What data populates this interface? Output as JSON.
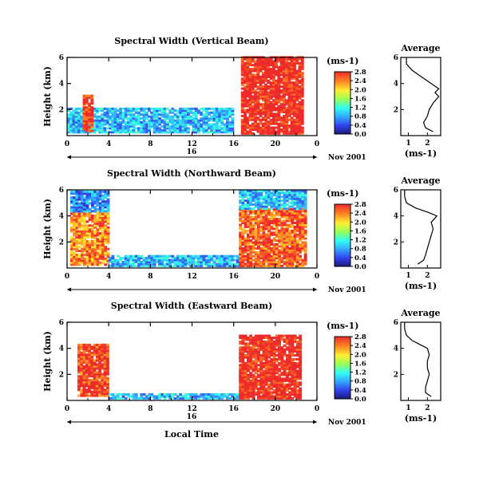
{
  "chart_data": [
    {
      "type": "heatmap",
      "title": "Spectral Width (Vertical Beam)",
      "ylabel": "Height (km)",
      "ylim": [
        0,
        6
      ],
      "yticks": [
        "2",
        "4",
        "6"
      ],
      "xlim": [
        0,
        24
      ],
      "xticks": [
        "0",
        "4",
        "8",
        "12",
        "16",
        "20",
        "0"
      ],
      "date_label": "16",
      "date_right": "Nov 2001",
      "colorbar": {
        "unit": "(ms-1)",
        "ticks": [
          "0.0",
          "0.4",
          "0.8",
          "1.2",
          "1.6",
          "2.0",
          "2.4",
          "2.8"
        ]
      },
      "echo_regions": [
        {
          "x": [
            0,
            16
          ],
          "y": [
            0.2,
            2.0
          ],
          "value": 0.9
        },
        {
          "x": [
            1.5,
            2.4
          ],
          "y": [
            0.3,
            3.1
          ],
          "value": 2.8
        },
        {
          "x": [
            16.7,
            22.5
          ],
          "y": [
            0.1,
            6.0
          ],
          "value": 2.9
        }
      ],
      "profile": {
        "title": "Average",
        "ylabel": "(ms-1)",
        "xlim": [
          0.6,
          2.7
        ],
        "xticks": [
          "1",
          "2"
        ],
        "y": [
          0.3,
          0.6,
          1.0,
          1.5,
          2.0,
          2.5,
          3.0,
          3.3,
          3.6,
          4.0,
          4.5,
          5.0,
          5.5,
          6.0
        ],
        "x": [
          2.3,
          1.9,
          1.8,
          2.0,
          2.1,
          2.3,
          2.6,
          2.4,
          2.6,
          2.2,
          1.7,
          1.2,
          0.9,
          0.9
        ]
      }
    },
    {
      "type": "heatmap",
      "title": "Spectral Width (Northward Beam)",
      "ylabel": "Height (km)",
      "ylim": [
        0,
        6
      ],
      "yticks": [
        "2",
        "4",
        "6"
      ],
      "xlim": [
        0,
        24
      ],
      "xticks": [
        "0",
        "4",
        "8",
        "12",
        "16",
        "20",
        "0"
      ],
      "date_label": "",
      "date_right": "Nov 2001",
      "colorbar": {
        "unit": "(ms-1)",
        "ticks": [
          "0.0",
          "0.4",
          "0.8",
          "1.2",
          "1.6",
          "2.0",
          "2.4",
          "2.8"
        ]
      },
      "echo_regions": [
        {
          "x": [
            0.3,
            4.0
          ],
          "y": [
            0.2,
            4.3
          ],
          "value": 2.4
        },
        {
          "x": [
            0.3,
            4.0
          ],
          "y": [
            4.3,
            5.9
          ],
          "value": 0.7
        },
        {
          "x": [
            4.0,
            16.5
          ],
          "y": [
            0.1,
            0.9
          ],
          "value": 0.9
        },
        {
          "x": [
            16.5,
            22.8
          ],
          "y": [
            0.1,
            4.5
          ],
          "value": 2.6
        },
        {
          "x": [
            16.5,
            22.8
          ],
          "y": [
            4.5,
            5.9
          ],
          "value": 0.9
        }
      ],
      "profile": {
        "title": "Average",
        "ylabel": "(ms-1)",
        "xlim": [
          0.6,
          2.7
        ],
        "xticks": [
          "1",
          "2"
        ],
        "y": [
          0.3,
          0.6,
          1.0,
          1.5,
          2.0,
          2.5,
          3.0,
          3.5,
          4.0,
          4.3,
          4.6,
          5.0,
          5.5,
          6.0
        ],
        "x": [
          1.5,
          1.8,
          1.9,
          2.0,
          2.1,
          2.2,
          2.3,
          2.2,
          2.5,
          2.0,
          1.4,
          0.9,
          0.8,
          0.8
        ]
      }
    },
    {
      "type": "heatmap",
      "title": "Spectral Width (Eastward Beam)",
      "ylabel": "Height (km)",
      "ylim": [
        0,
        6
      ],
      "yticks": [
        "2",
        "4",
        "6"
      ],
      "xlim": [
        0,
        24
      ],
      "xticks": [
        "0",
        "4",
        "8",
        "12",
        "16",
        "20",
        "0"
      ],
      "date_label": "16",
      "date_right": "Nov 2001",
      "colorbar": {
        "unit": "(ms-1)",
        "ticks": [
          "0.0",
          "0.4",
          "0.8",
          "1.2",
          "1.6",
          "2.0",
          "2.4",
          "2.8"
        ]
      },
      "echo_regions": [
        {
          "x": [
            1.0,
            3.8
          ],
          "y": [
            0.3,
            4.3
          ],
          "value": 2.7
        },
        {
          "x": [
            4.0,
            16.5
          ],
          "y": [
            0.1,
            0.5
          ],
          "value": 0.9
        },
        {
          "x": [
            16.5,
            22.5
          ],
          "y": [
            0.1,
            5.0
          ],
          "value": 2.9
        }
      ],
      "profile": {
        "title": "Average",
        "ylabel": "(ms-1)",
        "xlim": [
          0.6,
          2.7
        ],
        "xticks": [
          "1",
          "2"
        ],
        "y": [
          0.3,
          0.6,
          1.0,
          1.5,
          2.0,
          2.5,
          3.0,
          3.5,
          4.0,
          4.3,
          4.6,
          5.0,
          5.5,
          6.0
        ],
        "x": [
          2.2,
          1.9,
          1.9,
          2.0,
          2.1,
          2.0,
          2.0,
          2.1,
          2.0,
          1.6,
          1.2,
          0.9,
          0.8,
          0.8
        ]
      }
    }
  ],
  "xlabel": "Local Time"
}
